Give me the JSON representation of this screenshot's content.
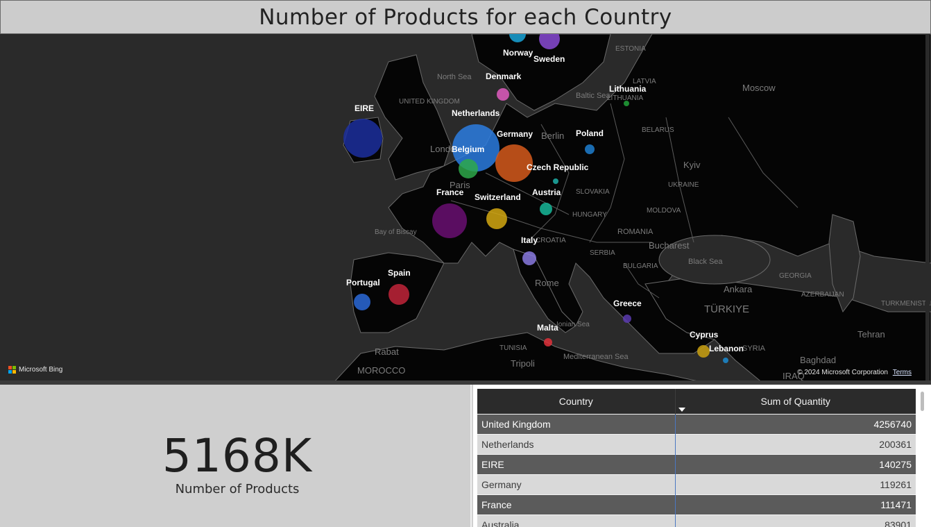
{
  "title": "Number of Products for each Country",
  "map": {
    "attribution": "Microsoft Bing",
    "copyright": "© 2024 Microsoft Corporation",
    "terms": "Terms",
    "country_points": [
      {
        "name": "Norway",
        "color": "#1aa5d8"
      },
      {
        "name": "Sweden",
        "color": "#8a4bd6"
      },
      {
        "name": "Denmark",
        "color": "#e05cc0"
      },
      {
        "name": "Lithuania",
        "color": "#22a33a"
      },
      {
        "name": "EIRE",
        "color": "#1c2f9e"
      },
      {
        "name": "Netherlands",
        "color": "#2b7de0"
      },
      {
        "name": "Germany",
        "color": "#d65b1c"
      },
      {
        "name": "Belgium",
        "color": "#2ea84a"
      },
      {
        "name": "Poland",
        "color": "#1f7fd0"
      },
      {
        "name": "Czech Republic",
        "color": "#1fb0a8"
      },
      {
        "name": "France",
        "color": "#6a0f72"
      },
      {
        "name": "Austria",
        "color": "#18b89a"
      },
      {
        "name": "Switzerland",
        "color": "#d4a812"
      },
      {
        "name": "Italy",
        "color": "#8a7ae0"
      },
      {
        "name": "Spain",
        "color": "#c2253a"
      },
      {
        "name": "Portugal",
        "color": "#2b6ad8"
      },
      {
        "name": "Greece",
        "color": "#5b3bb0"
      },
      {
        "name": "Malta",
        "color": "#e0303a"
      },
      {
        "name": "Cyprus",
        "color": "#c9a010"
      },
      {
        "name": "Lebanon",
        "color": "#1b8bd0"
      }
    ],
    "place_names": [
      "ESTONIA",
      "LATVIA",
      "LITHUANIA",
      "North Sea",
      "Baltic Sea",
      "UNITED KINGDOM",
      "Moscow",
      "BELARUS",
      "Kyiv",
      "UKRAINE",
      "Berlin",
      "Paris",
      "London",
      "Bay of Biscay",
      "HUNGARY",
      "SLOVAKIA",
      "MOLDOVA",
      "ROMANIA",
      "Bucharest",
      "SERBIA",
      "BULGARIA",
      "CROATIA",
      "Rome",
      "Black Sea",
      "GEORGIA",
      "AZERBAIJAN",
      "Ankara",
      "TÜRKIYE",
      "TURKMENISTAN",
      "Tehran",
      "Baghdad",
      "IRAQ",
      "SYRIA",
      "Ionian Sea",
      "Mediterranean Sea",
      "TUNISIA",
      "Tripoli",
      "Rabat",
      "MOROCCO"
    ]
  },
  "kpi": {
    "value": "5168K",
    "label": "Number of Products"
  },
  "table": {
    "headers": {
      "country": "Country",
      "quantity": "Sum of Quantity"
    },
    "rows": [
      {
        "country": "United Kingdom",
        "quantity": "4256740"
      },
      {
        "country": "Netherlands",
        "quantity": "200361"
      },
      {
        "country": "EIRE",
        "quantity": "140275"
      },
      {
        "country": "Germany",
        "quantity": "119261"
      },
      {
        "country": "France",
        "quantity": "111471"
      },
      {
        "country": "Australia",
        "quantity": "83901"
      }
    ]
  }
}
